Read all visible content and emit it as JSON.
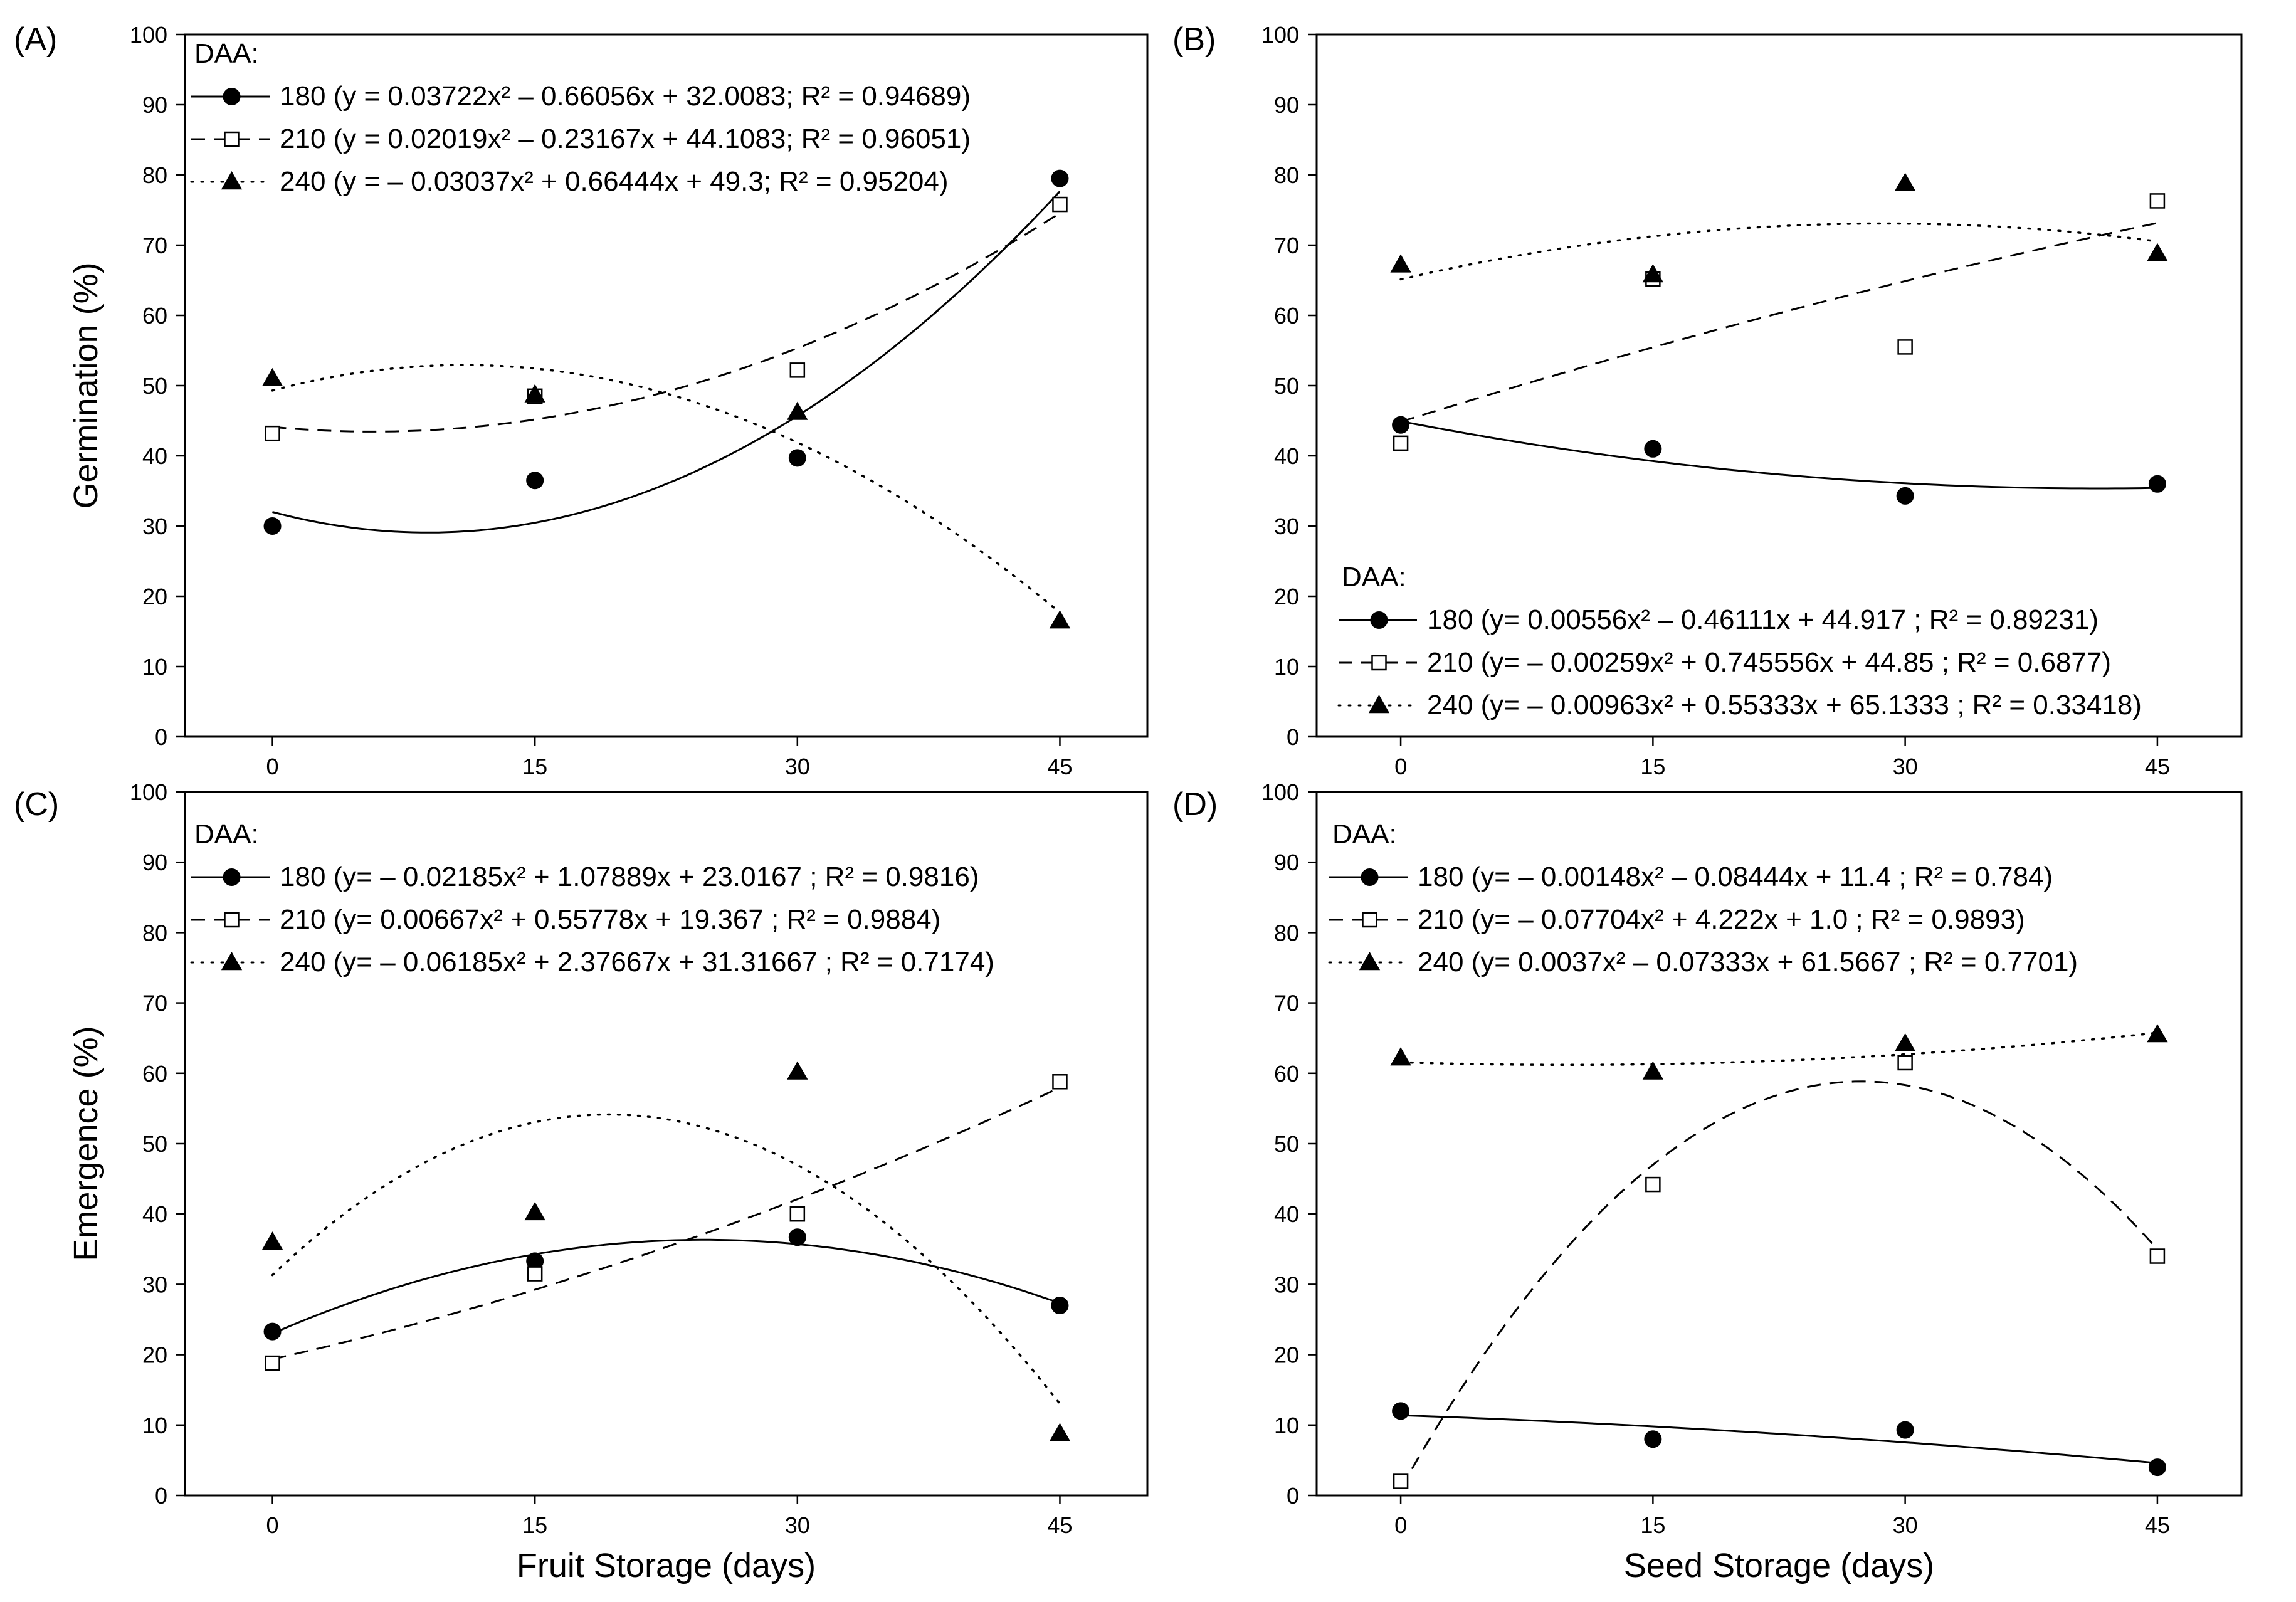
{
  "chart_data": [
    {
      "panel_label": "(A)",
      "type": "scatter",
      "xlabel": "",
      "ylabel": "Germination (%)",
      "x_ticks": [
        "0",
        "15",
        "30",
        "45"
      ],
      "y_ticks": [
        "0",
        "10",
        "20",
        "30",
        "40",
        "50",
        "60",
        "70",
        "80",
        "90",
        "100"
      ],
      "xlim": [
        -5,
        50
      ],
      "ylim": [
        0,
        100
      ],
      "legend_title": "DAA:",
      "legend_position": "top-left",
      "series": [
        {
          "name": "180",
          "label": "180 (y = 0.03722x² – 0.66056x + 32.0083; R² = 0.94689)",
          "marker": "circle",
          "line": "solid",
          "x": [
            0,
            15,
            30,
            45
          ],
          "y": [
            30,
            36.5,
            39.7,
            79.5
          ],
          "fit": [
            0.03722,
            -0.66056,
            32.0083
          ]
        },
        {
          "name": "210",
          "label": "210 (y = 0.02019x² – 0.23167x + 44.1083; R² = 0.96051)",
          "marker": "square",
          "line": "dash",
          "x": [
            0,
            15,
            30,
            45
          ],
          "y": [
            43.2,
            48.5,
            52.2,
            75.8
          ],
          "fit": [
            0.02019,
            -0.23167,
            44.1083
          ]
        },
        {
          "name": "240",
          "label": "240 (y = – 0.03037x² + 0.66444x + 49.3; R² = 0.95204)",
          "marker": "triangle",
          "line": "dot",
          "x": [
            0,
            15,
            30,
            45
          ],
          "y": [
            51,
            48.7,
            46.2,
            16.5
          ],
          "fit": [
            -0.03037,
            0.66444,
            49.3
          ]
        }
      ]
    },
    {
      "panel_label": "(B)",
      "type": "scatter",
      "xlabel": "",
      "ylabel": "",
      "x_ticks": [
        "0",
        "15",
        "30",
        "45"
      ],
      "y_ticks": [
        "0",
        "10",
        "20",
        "30",
        "40",
        "50",
        "60",
        "70",
        "80",
        "90",
        "100"
      ],
      "xlim": [
        -5,
        50
      ],
      "ylim": [
        0,
        100
      ],
      "legend_title": "DAA:",
      "legend_position": "bottom-left",
      "series": [
        {
          "name": "180",
          "label": "180 (y= 0.00556x² – 0.46111x + 44.917 ; R² = 0.89231)",
          "marker": "circle",
          "line": "solid",
          "x": [
            0,
            15,
            30,
            45
          ],
          "y": [
            44.4,
            41,
            34.3,
            36
          ],
          "fit": [
            0.00556,
            -0.46111,
            44.917
          ]
        },
        {
          "name": "210",
          "label": "210 (y= – 0.00259x² + 0.745556x + 44.85 ; R² = 0.6877)",
          "marker": "square",
          "line": "dash",
          "x": [
            0,
            15,
            30,
            45
          ],
          "y": [
            41.8,
            65.2,
            55.5,
            76.3
          ],
          "fit": [
            -0.00259,
            0.745556,
            44.85
          ]
        },
        {
          "name": "240",
          "label": "240 (y= – 0.00963x² + 0.55333x + 65.1333 ; R² = 0.33418)",
          "marker": "triangle",
          "line": "dot",
          "x": [
            0,
            15,
            30,
            45
          ],
          "y": [
            67.2,
            65.8,
            78.8,
            68.8
          ],
          "fit": [
            -0.00963,
            0.55333,
            65.1333
          ]
        }
      ]
    },
    {
      "panel_label": "(C)",
      "type": "scatter",
      "xlabel": "Fruit Storage (days)",
      "ylabel": "Emergence (%)",
      "x_ticks": [
        "0",
        "15",
        "30",
        "45"
      ],
      "y_ticks": [
        "0",
        "10",
        "20",
        "30",
        "40",
        "50",
        "60",
        "70",
        "80",
        "90",
        "100"
      ],
      "xlim": [
        -5,
        50
      ],
      "ylim": [
        0,
        100
      ],
      "legend_title": "DAA:",
      "legend_position": "top-left",
      "series": [
        {
          "name": "180",
          "label": "180 (y= – 0.02185x² + 1.07889x + 23.0167 ; R² = 0.9816)",
          "marker": "circle",
          "line": "solid",
          "x": [
            0,
            15,
            30,
            45
          ],
          "y": [
            23.3,
            33.3,
            36.7,
            27
          ],
          "fit": [
            -0.02185,
            1.07889,
            23.0167
          ]
        },
        {
          "name": "210",
          "label": "210 (y= 0.00667x² + 0.55778x + 19.367 ; R² = 0.9884)",
          "marker": "square",
          "line": "dash",
          "x": [
            0,
            15,
            30,
            45
          ],
          "y": [
            18.8,
            31.5,
            40,
            58.8
          ],
          "fit": [
            0.00667,
            0.55778,
            19.367
          ]
        },
        {
          "name": "240",
          "label": "240 (y= – 0.06185x² + 2.37667x + 31.31667 ; R² = 0.7174)",
          "marker": "triangle",
          "line": "dot",
          "x": [
            0,
            15,
            30,
            45
          ],
          "y": [
            36,
            40.2,
            60.2,
            8.8
          ],
          "fit": [
            -0.06185,
            2.37667,
            31.31667
          ]
        }
      ]
    },
    {
      "panel_label": "(D)",
      "type": "scatter",
      "xlabel": "Seed Storage (days)",
      "ylabel": "",
      "x_ticks": [
        "0",
        "15",
        "30",
        "45"
      ],
      "y_ticks": [
        "0",
        "10",
        "20",
        "30",
        "40",
        "50",
        "60",
        "70",
        "80",
        "90",
        "100"
      ],
      "xlim": [
        -5,
        50
      ],
      "ylim": [
        0,
        100
      ],
      "legend_title": "DAA:",
      "legend_position": "top-left",
      "series": [
        {
          "name": "180",
          "label": "180 (y= – 0.00148x² – 0.08444x + 11.4 ; R² = 0.784)",
          "marker": "circle",
          "line": "solid",
          "x": [
            0,
            15,
            30,
            45
          ],
          "y": [
            12,
            8,
            9.3,
            4
          ],
          "fit": [
            -0.00148,
            -0.08444,
            11.4
          ]
        },
        {
          "name": "210",
          "label": "210 (y= – 0.07704x² + 4.222x + 1.0 ; R² = 0.9893)",
          "marker": "square",
          "line": "dash",
          "x": [
            0,
            15,
            30,
            45
          ],
          "y": [
            2,
            44.2,
            61.5,
            34
          ],
          "fit": [
            -0.07704,
            4.222,
            1.0
          ]
        },
        {
          "name": "240",
          "label": "240 (y= 0.0037x² – 0.07333x + 61.5667 ; R² = 0.7701)",
          "marker": "triangle",
          "line": "dot",
          "x": [
            0,
            15,
            30,
            45
          ],
          "y": [
            62.2,
            60.2,
            64.2,
            65.5
          ],
          "fit": [
            0.0037,
            -0.07333,
            61.5667
          ]
        }
      ]
    }
  ]
}
